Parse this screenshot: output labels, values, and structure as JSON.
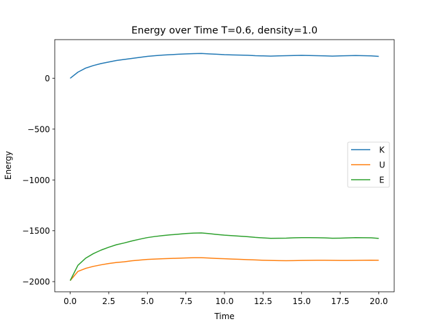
{
  "chart_data": {
    "type": "line",
    "title": "Energy over Time T=0.6, density=1.0",
    "xlabel": "Time",
    "ylabel": "Energy",
    "xlim": [
      -1.0,
      21.0
    ],
    "ylim": [
      -2100,
      380
    ],
    "x_ticks": [
      0.0,
      2.5,
      5.0,
      7.5,
      10.0,
      12.5,
      15.0,
      17.5,
      20.0
    ],
    "x_tick_labels": [
      "0.0",
      "2.5",
      "5.0",
      "7.5",
      "10.0",
      "12.5",
      "15.0",
      "17.5",
      "20.0"
    ],
    "y_ticks": [
      0,
      -500,
      -1000,
      -1500,
      -2000
    ],
    "y_tick_labels": [
      "0",
      "−500",
      "−1000",
      "−1500",
      "−2000"
    ],
    "grid": false,
    "legend_position": "center-right",
    "x": [
      0,
      0.5,
      1,
      1.5,
      2,
      2.5,
      3,
      3.5,
      4,
      4.5,
      5,
      5.5,
      6,
      6.5,
      7,
      7.5,
      8,
      8.5,
      9,
      9.5,
      10,
      10.5,
      11,
      11.5,
      12,
      12.5,
      13,
      13.5,
      14,
      14.5,
      15,
      15.5,
      16,
      16.5,
      17,
      17.5,
      18,
      18.5,
      19,
      19.5,
      20
    ],
    "series": [
      {
        "name": "K",
        "color": "#1f77b4",
        "values": [
          0,
          60,
          100,
          125,
          145,
          160,
          175,
          185,
          195,
          205,
          215,
          222,
          228,
          232,
          236,
          240,
          242,
          244,
          240,
          236,
          232,
          230,
          228,
          226,
          222,
          220,
          218,
          220,
          222,
          224,
          225,
          224,
          222,
          220,
          218,
          220,
          222,
          224,
          222,
          220,
          215
        ]
      },
      {
        "name": "U",
        "color": "#ff7f0e",
        "values": [
          -1990,
          -1900,
          -1870,
          -1850,
          -1835,
          -1822,
          -1812,
          -1805,
          -1795,
          -1788,
          -1782,
          -1778,
          -1775,
          -1772,
          -1770,
          -1767,
          -1765,
          -1765,
          -1768,
          -1772,
          -1775,
          -1778,
          -1781,
          -1784,
          -1787,
          -1790,
          -1792,
          -1793,
          -1794,
          -1793,
          -1792,
          -1791,
          -1790,
          -1790,
          -1791,
          -1792,
          -1792,
          -1791,
          -1790,
          -1789,
          -1790
        ]
      },
      {
        "name": "E",
        "color": "#2ca02c",
        "values": [
          -1990,
          -1840,
          -1770,
          -1725,
          -1690,
          -1662,
          -1637,
          -1620,
          -1600,
          -1583,
          -1567,
          -1556,
          -1547,
          -1540,
          -1534,
          -1527,
          -1523,
          -1521,
          -1528,
          -1536,
          -1543,
          -1548,
          -1553,
          -1558,
          -1565,
          -1570,
          -1574,
          -1573,
          -1572,
          -1569,
          -1567,
          -1567,
          -1568,
          -1570,
          -1573,
          -1572,
          -1570,
          -1567,
          -1568,
          -1569,
          -1575
        ]
      }
    ]
  }
}
